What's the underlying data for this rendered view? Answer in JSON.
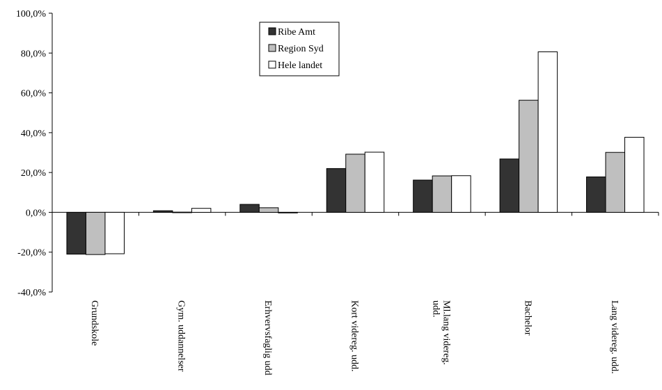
{
  "chart_data": {
    "type": "bar",
    "categories": [
      "Grundskole",
      "Gym. uddannelser",
      "Erhvervsfaglig udd",
      "Kort videreg. udd.",
      "Ml.lang videreg. udd.",
      "Bachelor",
      "Lang videreg. udd."
    ],
    "series": [
      {
        "name": "Ribe Amt",
        "color": "#333333",
        "values": [
          -21.0,
          0.8,
          4.0,
          22.0,
          16.2,
          26.8,
          17.8
        ]
      },
      {
        "name": "Region Syd",
        "color": "#bfbfbf",
        "values": [
          -21.2,
          0.1,
          2.3,
          29.2,
          18.3,
          56.3,
          30.1
        ]
      },
      {
        "name": "Hele landet",
        "color": "#ffffff",
        "values": [
          -20.8,
          2.0,
          -0.3,
          30.2,
          18.4,
          80.6,
          37.7
        ]
      }
    ],
    "y_ticks": [
      "100,0%",
      "80,0%",
      "60,0%",
      "40,0%",
      "20,0%",
      "0,0%",
      "-20,0%",
      "-40,0%"
    ],
    "ylim": [
      -40,
      100
    ],
    "legend_position": "top-center",
    "grid": false
  }
}
